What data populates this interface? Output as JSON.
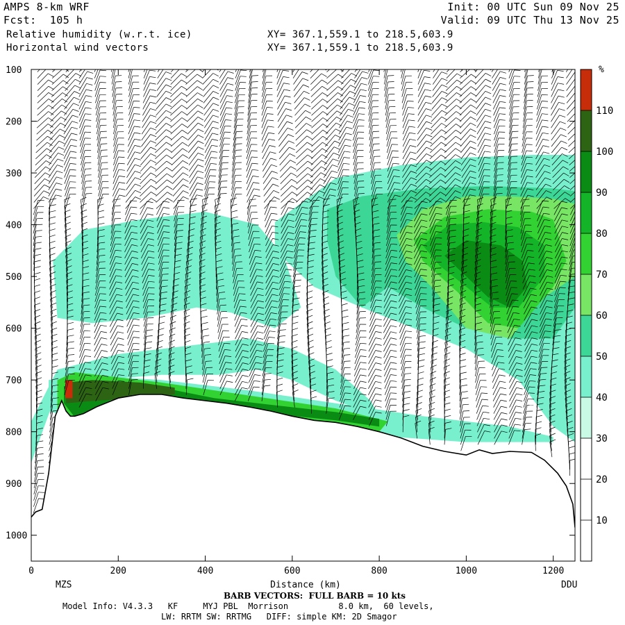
{
  "header": {
    "model": "AMPS 8-km WRF",
    "forecast": "Fcst:  105 h",
    "init": "Init: 00 UTC Sun 09 Nov 25",
    "valid": "Valid: 09 UTC Thu 13 Nov 25",
    "field1": "Relative humidity (w.r.t. ice)",
    "field2": "Horizontal wind vectors",
    "xy1": "XY= 367.1,559.1 to 218.5,603.9",
    "xy2": "XY= 367.1,559.1 to 218.5,603.9"
  },
  "footer": {
    "barb_note": "BARB VECTORS:  FULL BARB = 10 kts",
    "model_info": "Model Info: V4.3.3   KF     MYJ PBL  Morrison          8.0 km,  60 levels,",
    "physics": "LW: RRTM SW: RRTMG   DIFF: simple KM: 2D Smagor"
  },
  "chart_data": {
    "type": "heatmap",
    "title": "Relative humidity (w.r.t. ice)",
    "xlabel": "Distance (km)",
    "ylabel": "",
    "x_ticks": [
      0,
      200,
      400,
      600,
      800,
      1000,
      1200
    ],
    "y_ticks": [
      100,
      200,
      300,
      400,
      500,
      600,
      700,
      800,
      900,
      1000
    ],
    "xlim": [
      0,
      1250
    ],
    "ylim": [
      1050,
      100
    ],
    "endpoints": {
      "left": "MZS",
      "right": "DDU"
    },
    "colorbar": {
      "unit": "%",
      "levels": [
        10,
        20,
        30,
        40,
        50,
        60,
        70,
        80,
        90,
        100,
        110
      ],
      "colors": [
        "#ffffff",
        "#ffffff",
        "#ffffff",
        "#c8fae6",
        "#78f0cd",
        "#3cd796",
        "#78e664",
        "#32d232",
        "#14b428",
        "#0a8c14",
        "#2d6414",
        "#c82d0a"
      ]
    },
    "terrain_profile": {
      "x": [
        0,
        10,
        25,
        40,
        55,
        70,
        80,
        90,
        100,
        120,
        150,
        200,
        250,
        300,
        350,
        400,
        450,
        500,
        550,
        600,
        650,
        700,
        750,
        800,
        850,
        900,
        950,
        1000,
        1030,
        1060,
        1100,
        1150,
        1180,
        1210,
        1230,
        1245,
        1250
      ],
      "p": [
        965,
        955,
        950,
        880,
        770,
        740,
        760,
        770,
        770,
        765,
        752,
        735,
        728,
        728,
        735,
        740,
        745,
        752,
        760,
        770,
        778,
        782,
        790,
        800,
        812,
        828,
        838,
        845,
        835,
        842,
        838,
        840,
        855,
        880,
        905,
        940,
        985
      ]
    },
    "rh_regions": [
      {
        "level": 40,
        "x": [
          0,
          60,
          200,
          500,
          600,
          700,
          780,
          820,
          800,
          700,
          600,
          520,
          430,
          300,
          150,
          60,
          0
        ],
        "p": [
          780,
          680,
          650,
          620,
          640,
          680,
          740,
          800,
          770,
          740,
          700,
          680,
          690,
          690,
          700,
          720,
          860
        ]
      },
      {
        "level": 40,
        "x": [
          50,
          120,
          250,
          400,
          520,
          580,
          620,
          560,
          460,
          380,
          260,
          140,
          60
        ],
        "p": [
          470,
          410,
          390,
          375,
          400,
          460,
          560,
          600,
          570,
          560,
          580,
          590,
          580
        ]
      },
      {
        "level": 40,
        "x": [
          560,
          700,
          850,
          1000,
          1150,
          1250,
          1250,
          1200,
          1120,
          1000,
          880,
          760,
          650,
          560
        ],
        "p": [
          395,
          310,
          285,
          270,
          265,
          265,
          820,
          790,
          700,
          640,
          600,
          560,
          520,
          450
        ]
      },
      {
        "level": 50,
        "x": [
          680,
          760,
          900,
          1050,
          1200,
          1250,
          1250,
          1200,
          1100,
          1000,
          900,
          820,
          760,
          700,
          680
        ],
        "p": [
          370,
          345,
          330,
          325,
          330,
          335,
          560,
          620,
          620,
          600,
          560,
          520,
          560,
          500,
          430
        ]
      },
      {
        "level": 60,
        "x": [
          840,
          900,
          1000,
          1100,
          1200,
          1250,
          1250,
          1180,
          1100,
          1000,
          920,
          860
        ],
        "p": [
          420,
          370,
          345,
          345,
          350,
          360,
          500,
          540,
          620,
          600,
          520,
          470
        ]
      },
      {
        "level": 70,
        "x": [
          880,
          950,
          1050,
          1150,
          1200,
          1230,
          1200,
          1120,
          1050,
          980,
          900
        ],
        "p": [
          430,
          385,
          370,
          375,
          390,
          470,
          520,
          600,
          590,
          530,
          470
        ]
      },
      {
        "level": 80,
        "x": [
          900,
          960,
          1040,
          1120,
          1180,
          1180,
          1120,
          1060,
          1000,
          940
        ],
        "p": [
          440,
          400,
          395,
          405,
          440,
          500,
          560,
          560,
          520,
          480
        ]
      },
      {
        "level": 90,
        "x": [
          950,
          1000,
          1080,
          1130,
          1140,
          1100,
          1050,
          1000
        ],
        "p": [
          460,
          430,
          440,
          470,
          520,
          560,
          540,
          500
        ]
      },
      {
        "level": 40,
        "x": [
          40,
          100,
          300,
          500,
          700,
          900,
          1100,
          1200,
          1200,
          1000,
          800,
          600,
          400,
          200,
          80,
          40
        ],
        "p": [
          700,
          690,
          700,
          720,
          745,
          770,
          790,
          810,
          820,
          820,
          808,
          790,
          770,
          760,
          770,
          760
        ]
      },
      {
        "level": 70,
        "x": [
          60,
          100,
          300,
          500,
          700,
          820,
          800,
          600,
          400,
          300,
          200,
          100,
          60
        ],
        "p": [
          700,
          685,
          705,
          730,
          755,
          780,
          800,
          778,
          752,
          742,
          742,
          775,
          760
        ]
      },
      {
        "level": 90,
        "x": [
          75,
          200,
          320,
          420,
          550,
          700,
          800,
          800,
          700,
          550,
          420,
          300,
          200,
          100,
          75
        ],
        "p": [
          712,
          705,
          718,
          735,
          748,
          762,
          775,
          790,
          778,
          765,
          750,
          735,
          732,
          772,
          745
        ]
      },
      {
        "level": 100,
        "x": [
          80,
          140,
          250,
          330,
          330,
          250,
          150,
          80
        ],
        "p": [
          705,
          700,
          705,
          715,
          728,
          735,
          740,
          745
        ]
      },
      {
        "level": 110,
        "x": [
          78,
          95,
          95,
          78
        ],
        "p": [
          700,
          700,
          735,
          735
        ]
      }
    ],
    "barb_columns_x": [
      0,
      35,
      70,
      105,
      140,
      175,
      210,
      245,
      280,
      315,
      350,
      385,
      420,
      455,
      490,
      525,
      560,
      595,
      630,
      665,
      700,
      735,
      770,
      805,
      840,
      875,
      910,
      945,
      980,
      1015,
      1050,
      1085,
      1120,
      1155,
      1190,
      1225
    ]
  }
}
